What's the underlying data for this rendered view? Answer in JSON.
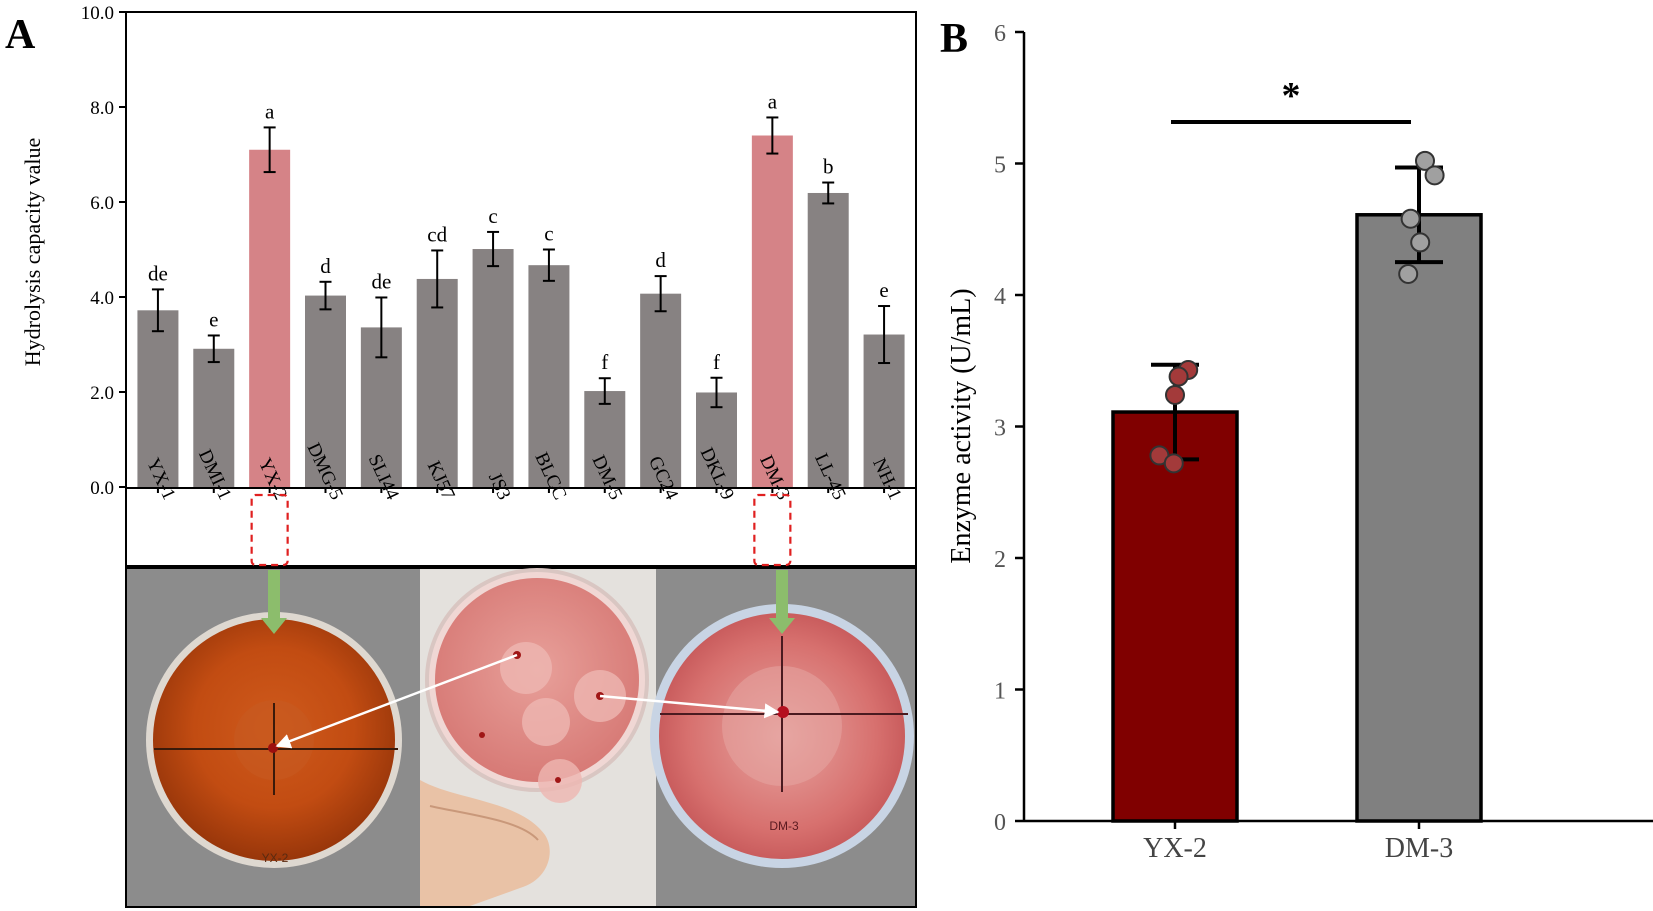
{
  "chart_data": [
    {
      "panel": "A",
      "type": "bar",
      "title": "",
      "xlabel": "",
      "ylabel": "Hydrolysis capacity value",
      "ylim": [
        0,
        10
      ],
      "yticks": [
        "0.0",
        "2.0",
        "4.0",
        "6.0",
        "8.0",
        "10.0"
      ],
      "categories": [
        "YX-1",
        "DMI-1",
        "YX-2",
        "DMG-5",
        "SLI44",
        "KJ57",
        "JS3",
        "BLCC",
        "DM-5",
        "GC24",
        "DKL-9",
        "DM-3",
        "LL-45",
        "NH-1"
      ],
      "values": [
        3.72,
        2.91,
        7.1,
        4.03,
        3.36,
        4.38,
        5.01,
        4.67,
        2.02,
        4.07,
        1.99,
        7.4,
        6.19,
        3.21
      ],
      "errors": [
        0.44,
        0.28,
        0.47,
        0.29,
        0.63,
        0.6,
        0.36,
        0.33,
        0.27,
        0.37,
        0.31,
        0.38,
        0.22,
        0.6
      ],
      "significance": [
        "de",
        "e",
        "a",
        "d",
        "de",
        "cd",
        "c",
        "c",
        "f",
        "d",
        "f",
        "a",
        "b",
        "e"
      ],
      "highlighted": [
        "YX-2",
        "DM-3"
      ],
      "colors": {
        "default": "#878282",
        "highlight": "#d58387",
        "marker": "#e02020",
        "arrow": "#8cbd6c"
      },
      "photo_labels": [
        "YX-2",
        "DM-3"
      ]
    },
    {
      "panel": "B",
      "type": "bar",
      "title": "",
      "xlabel": "",
      "ylabel": "Enzyme activity (U/mL)",
      "ylim": [
        0,
        6
      ],
      "yticks": [
        "0",
        "1",
        "2",
        "3",
        "4",
        "5",
        "6"
      ],
      "categories": [
        "YX-2",
        "DM-3"
      ],
      "values": [
        3.11,
        4.61
      ],
      "errors": [
        0.36,
        0.36
      ],
      "points": [
        [
          3.43,
          3.38,
          3.24,
          2.78,
          2.72
        ],
        [
          5.02,
          4.91,
          4.58,
          4.4,
          4.16
        ]
      ],
      "significance_mark": "*",
      "colors": [
        "#800000",
        "#808080"
      ],
      "point_colors": [
        "#a33a3a",
        "#a0a0a0"
      ]
    }
  ]
}
